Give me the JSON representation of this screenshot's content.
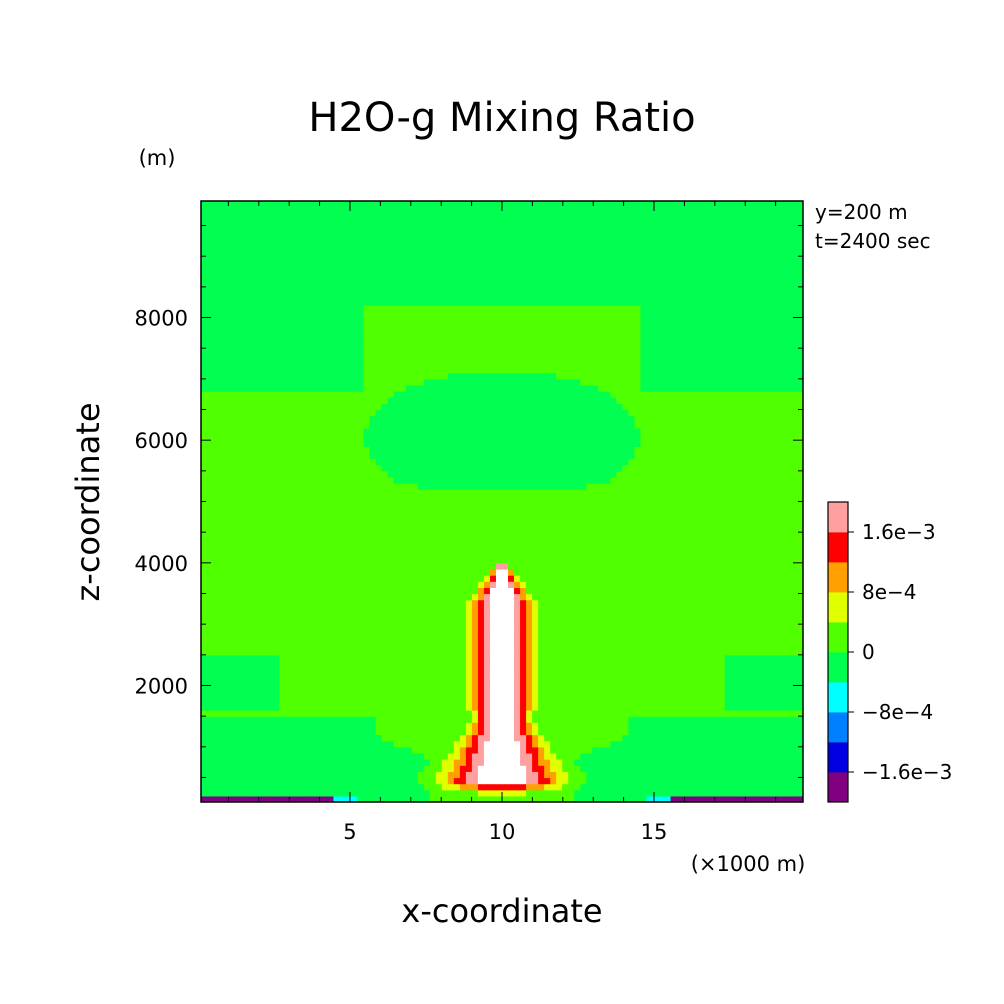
{
  "chart_data": {
    "type": "heatmap",
    "title": "H2O-g Mixing Ratio",
    "xlabel": "x-coordinate",
    "ylabel": "z-coordinate",
    "x_unit": "(×1000 m)",
    "y_unit": "(m)",
    "annotations": [
      "y=200 m",
      "t=2400 sec"
    ],
    "xlim": [
      0.1,
      19.9
    ],
    "ylim": [
      100,
      9900
    ],
    "x_ticks": [
      5,
      10,
      15
    ],
    "x_tick_labels": [
      "5",
      "10",
      "15"
    ],
    "y_ticks": [
      2000,
      4000,
      6000,
      8000
    ],
    "y_tick_labels": [
      "2000",
      "4000",
      "6000",
      "8000"
    ],
    "legend": {
      "placement": "right",
      "levels": [
        -0.002,
        -0.0016,
        -0.0012,
        -0.0008,
        -0.0004,
        0,
        0.0004,
        0.0008,
        0.0012,
        0.0016,
        0.002
      ],
      "colors": [
        "#800080",
        "#0000e0",
        "#0080ff",
        "#00ffff",
        "#00ff50",
        "#50ff00",
        "#e0ff00",
        "#ffa000",
        "#ff0000",
        "#ffa0a0"
      ],
      "labels": [
        {
          "value": -0.0016,
          "text": "−1.6e−3"
        },
        {
          "value": -0.0008,
          "text": "−8e−4"
        },
        {
          "value": 0,
          "text": "0"
        },
        {
          "value": 0.0008,
          "text": "8e−4"
        },
        {
          "value": 0.0016,
          "text": "1.6e−3"
        }
      ],
      "above_max_color": "#ffffff"
    },
    "field": {
      "background": 0.0002,
      "upper_columns": {
        "x_inner": [
          5.5,
          14.5
        ],
        "z_min": 6800,
        "z_max": 9900,
        "value": -0.0002
      },
      "upper_blob": {
        "x_center": 10,
        "z_center": 6050,
        "x_halfwidth": 4.5,
        "z_halfheight": 1100,
        "value": -0.0002
      },
      "shelves": [
        {
          "x_range": [
            0.1,
            2.6
          ],
          "z_range": [
            1650,
            2450
          ],
          "value": -0.0002
        },
        {
          "x_range": [
            17.4,
            19.9
          ],
          "z_range": [
            1650,
            2450
          ],
          "value": -0.0002
        }
      ],
      "plume": {
        "x_center": 10,
        "z_top": 3950,
        "z_base": 400,
        "peak_value": 0.0028
      },
      "low_level_negative": {
        "z_top": 1250,
        "min_value": -0.0021,
        "x_edge_min": [
          1,
          19
        ]
      }
    }
  }
}
